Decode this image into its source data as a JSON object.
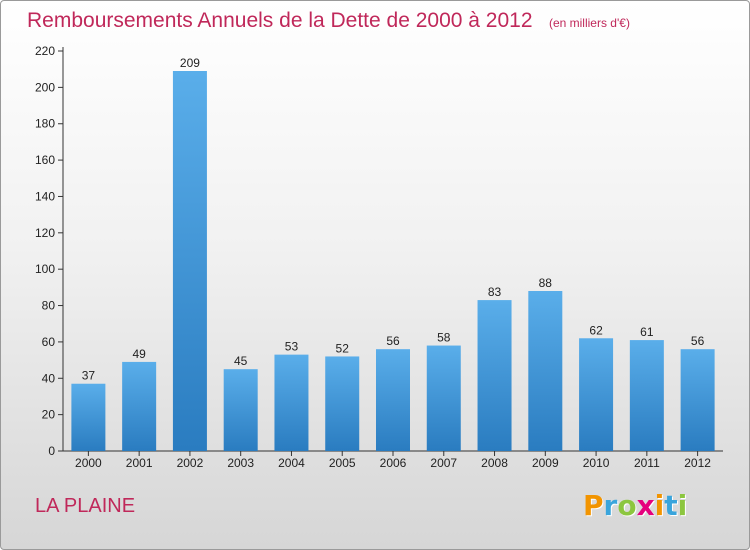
{
  "header": {
    "title": "Remboursements Annuels de la Dette de 2000 à 2012",
    "subtitle": "(en milliers d'€)"
  },
  "place": "LA PLAINE",
  "brand": {
    "letters": [
      "P",
      "r",
      "o",
      "x",
      "i",
      "t",
      "i"
    ],
    "colors": [
      "#f29400",
      "#3aa5dc",
      "#8cc63f",
      "#e5007d",
      "#f29400",
      "#3aa5dc",
      "#8cc63f"
    ]
  },
  "chart_data": {
    "type": "bar",
    "title": "Remboursements Annuels de la Dette de 2000 à 2012",
    "subtitle": "(en milliers d'€)",
    "categories": [
      "2000",
      "2001",
      "2002",
      "2003",
      "2004",
      "2005",
      "2006",
      "2007",
      "2008",
      "2009",
      "2010",
      "2011",
      "2012"
    ],
    "values": [
      37,
      49,
      209,
      45,
      53,
      52,
      56,
      58,
      83,
      88,
      62,
      61,
      56
    ],
    "yticks": [
      0,
      20,
      40,
      60,
      80,
      100,
      120,
      140,
      160,
      180,
      200,
      220
    ],
    "ylim": [
      0,
      220
    ],
    "xlabel": "",
    "ylabel": "",
    "grid": false,
    "bar_color_light": "#5aaeea",
    "bar_color_dark": "#2a7cc0"
  }
}
